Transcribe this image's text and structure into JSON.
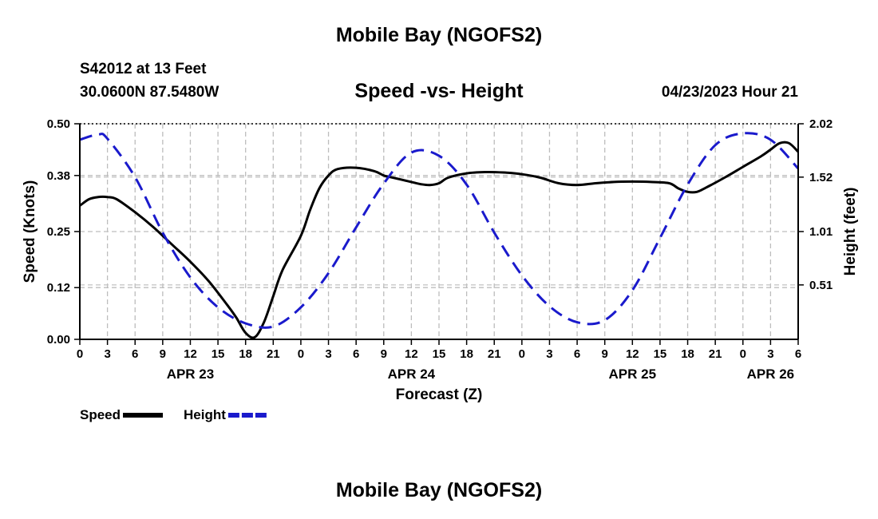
{
  "header": {
    "title": "Mobile Bay (NGOFS2)",
    "station": "S42012 at 13 Feet",
    "coords": "30.0600N  87.5480W",
    "subtitle": "Speed -vs- Height",
    "datetime": "04/23/2023 Hour 21"
  },
  "footer": {
    "title": "Mobile Bay (NGOFS2)"
  },
  "chart_data": {
    "type": "line",
    "title": "Speed -vs- Height",
    "xlabel": "Forecast (Z)",
    "ylabel": "Speed (Knots)",
    "y2label": "Height (feet)",
    "xlim": [
      0,
      78
    ],
    "ylim": [
      0,
      0.5
    ],
    "y2lim": [
      0,
      2.02
    ],
    "x_tick_values": [
      0,
      3,
      6,
      9,
      12,
      15,
      18,
      21,
      24,
      27,
      30,
      33,
      36,
      39,
      42,
      45,
      48,
      51,
      54,
      57,
      60,
      63,
      66,
      69,
      72,
      75,
      78
    ],
    "x_tick_labels": [
      "0",
      "3",
      "6",
      "9",
      "12",
      "15",
      "18",
      "21",
      "0",
      "3",
      "6",
      "9",
      "12",
      "15",
      "18",
      "21",
      "0",
      "3",
      "6",
      "9",
      "12",
      "15",
      "18",
      "21",
      "0",
      "3",
      "6"
    ],
    "day_labels": [
      {
        "x": 12,
        "label": "APR 23"
      },
      {
        "x": 36,
        "label": "APR 24"
      },
      {
        "x": 60,
        "label": "APR 25"
      },
      {
        "x": 75,
        "label": "APR 26"
      }
    ],
    "y_ticks": [
      0.0,
      0.12,
      0.25,
      0.38,
      0.5
    ],
    "y_tick_labels": [
      "0.00",
      "0.12",
      "0.25",
      "0.38",
      "0.50"
    ],
    "y2_ticks": [
      0.51,
      1.01,
      1.52,
      2.02
    ],
    "y2_tick_labels": [
      "0.51",
      "1.01",
      "1.52",
      "2.02"
    ],
    "grid": true,
    "legend": [
      {
        "name": "Speed",
        "color": "#000000",
        "dash": "solid"
      },
      {
        "name": "Height",
        "color": "#1a1acc",
        "dash": "dashed"
      }
    ],
    "series": [
      {
        "name": "Speed",
        "axis": "left",
        "color": "#000000",
        "dash": "solid",
        "x": [
          0,
          1,
          2,
          3,
          4,
          6,
          8,
          10,
          12,
          14,
          16,
          17,
          18,
          19,
          20,
          21,
          22,
          24,
          25,
          26,
          27,
          28,
          30,
          32,
          33,
          34,
          35,
          36,
          37,
          38,
          39,
          40,
          42,
          44,
          46,
          48,
          50,
          52,
          54,
          56,
          58,
          60,
          62,
          64,
          65,
          66,
          67,
          68,
          70,
          72,
          74,
          75,
          76,
          77,
          78
        ],
        "values": [
          0.31,
          0.325,
          0.33,
          0.33,
          0.325,
          0.295,
          0.26,
          0.22,
          0.18,
          0.135,
          0.08,
          0.05,
          0.015,
          0.005,
          0.04,
          0.1,
          0.16,
          0.24,
          0.3,
          0.35,
          0.38,
          0.395,
          0.398,
          0.39,
          0.38,
          0.375,
          0.37,
          0.365,
          0.36,
          0.358,
          0.362,
          0.375,
          0.385,
          0.388,
          0.387,
          0.383,
          0.375,
          0.362,
          0.358,
          0.362,
          0.365,
          0.366,
          0.365,
          0.362,
          0.35,
          0.342,
          0.342,
          0.352,
          0.375,
          0.4,
          0.425,
          0.44,
          0.455,
          0.455,
          0.435
        ]
      },
      {
        "name": "Height",
        "axis": "right",
        "color": "#1a1acc",
        "dash": "dashed",
        "x": [
          0,
          2,
          3,
          6,
          9,
          12,
          15,
          18,
          21,
          24,
          27,
          30,
          33,
          36,
          39,
          42,
          45,
          48,
          51,
          54,
          57,
          60,
          63,
          66,
          69,
          72,
          75,
          78
        ],
        "values": [
          1.87,
          1.92,
          1.88,
          1.52,
          1.0,
          0.58,
          0.3,
          0.15,
          0.12,
          0.3,
          0.62,
          1.05,
          1.46,
          1.75,
          1.72,
          1.45,
          1.0,
          0.6,
          0.31,
          0.16,
          0.18,
          0.46,
          0.95,
          1.45,
          1.82,
          1.93,
          1.87,
          1.6
        ]
      }
    ]
  }
}
